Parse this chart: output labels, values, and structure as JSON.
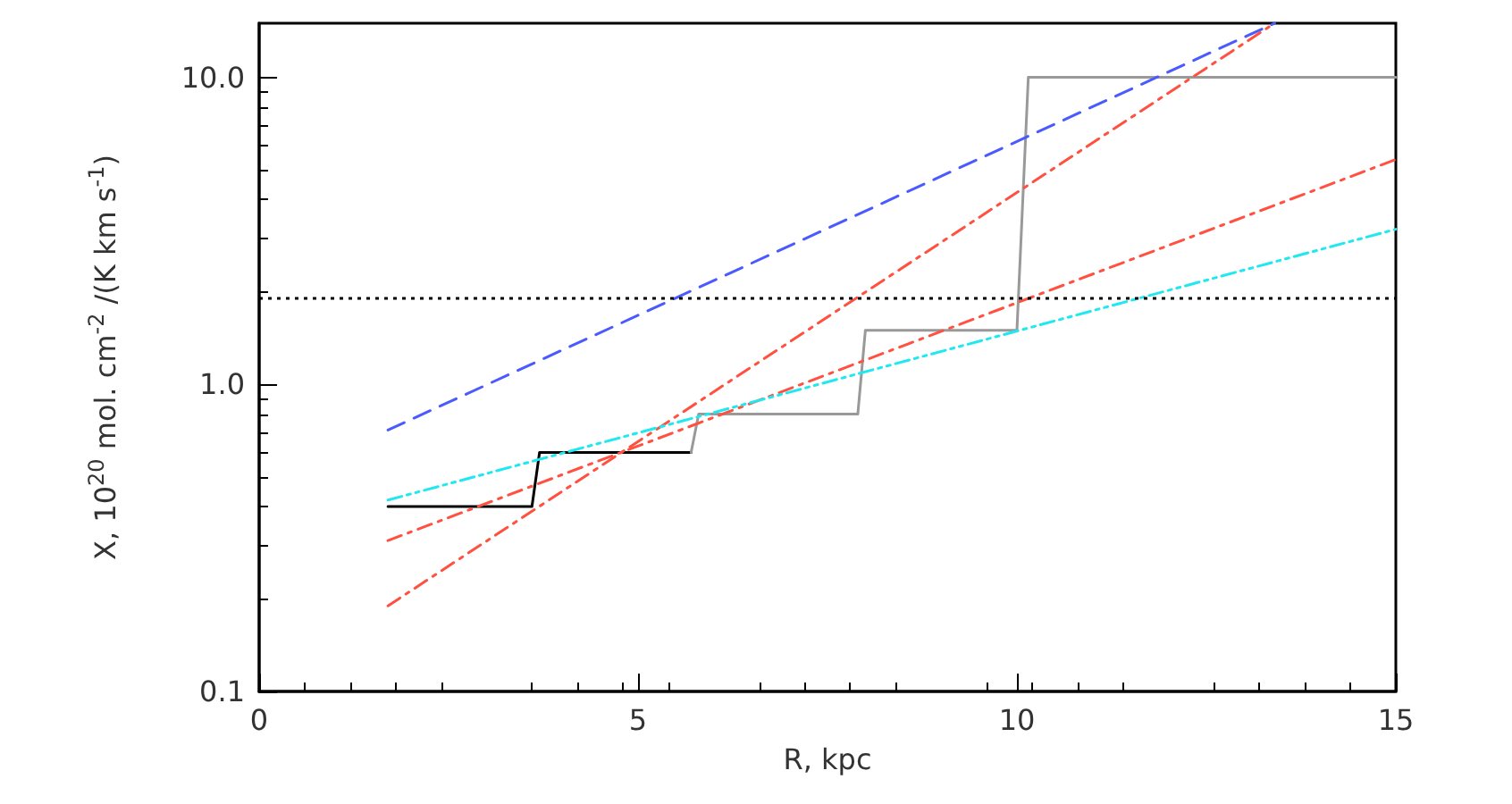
{
  "chart_data": {
    "type": "line",
    "xlabel": "R, kpc",
    "ylabel": "X, 10$^{20}$ mol. cm$^{-2}$ /(K km s$^{-1}$)",
    "xlim": [
      0,
      15
    ],
    "xticks": [
      0,
      5,
      10,
      15
    ],
    "ylim": [
      0.1,
      15
    ],
    "yticks": [
      {
        "value": 0.1,
        "label": "0.1"
      },
      {
        "value": 1,
        "label": "1.0"
      },
      {
        "value": 10,
        "label": "10.0"
      }
    ],
    "log": "y",
    "grid": false,
    "marker": "none",
    "series": [
      {
        "color": "#000000",
        "line_style": "solid",
        "x": [
          1.7,
          3.6,
          3.7,
          5.7
        ],
        "values": [
          0.4,
          0.4,
          0.6,
          0.6
        ]
      },
      {
        "color": "#999999",
        "line_style": "solid",
        "x": [
          5.7,
          5.8,
          7.9,
          8.0,
          10.0,
          10.15,
          15.0
        ],
        "values": [
          0.6,
          0.8,
          0.8,
          1.5,
          1.5,
          10,
          10
        ]
      },
      {
        "color": "#4a5aff",
        "line_style": "dashed",
        "x": [
          1.7,
          13.4
        ],
        "values": [
          0.71,
          15
        ]
      },
      {
        "color": "#ff5040",
        "line_style": "dashdot",
        "x": [
          1.7,
          13.4
        ],
        "values": [
          0.19,
          15
        ]
      },
      {
        "color": "#ff5040",
        "line_style": "dashdot",
        "x": [
          1.7,
          15.0
        ],
        "values": [
          0.31,
          5.4
        ]
      },
      {
        "color": "#20e8f0",
        "line_style": "dashdotdot",
        "x": [
          1.7,
          15.0
        ],
        "values": [
          0.42,
          3.2
        ]
      }
    ],
    "ref_lines": [
      {
        "axis": "y",
        "value": 1.9,
        "color": "#000000",
        "line_style": "dotted"
      }
    ]
  }
}
